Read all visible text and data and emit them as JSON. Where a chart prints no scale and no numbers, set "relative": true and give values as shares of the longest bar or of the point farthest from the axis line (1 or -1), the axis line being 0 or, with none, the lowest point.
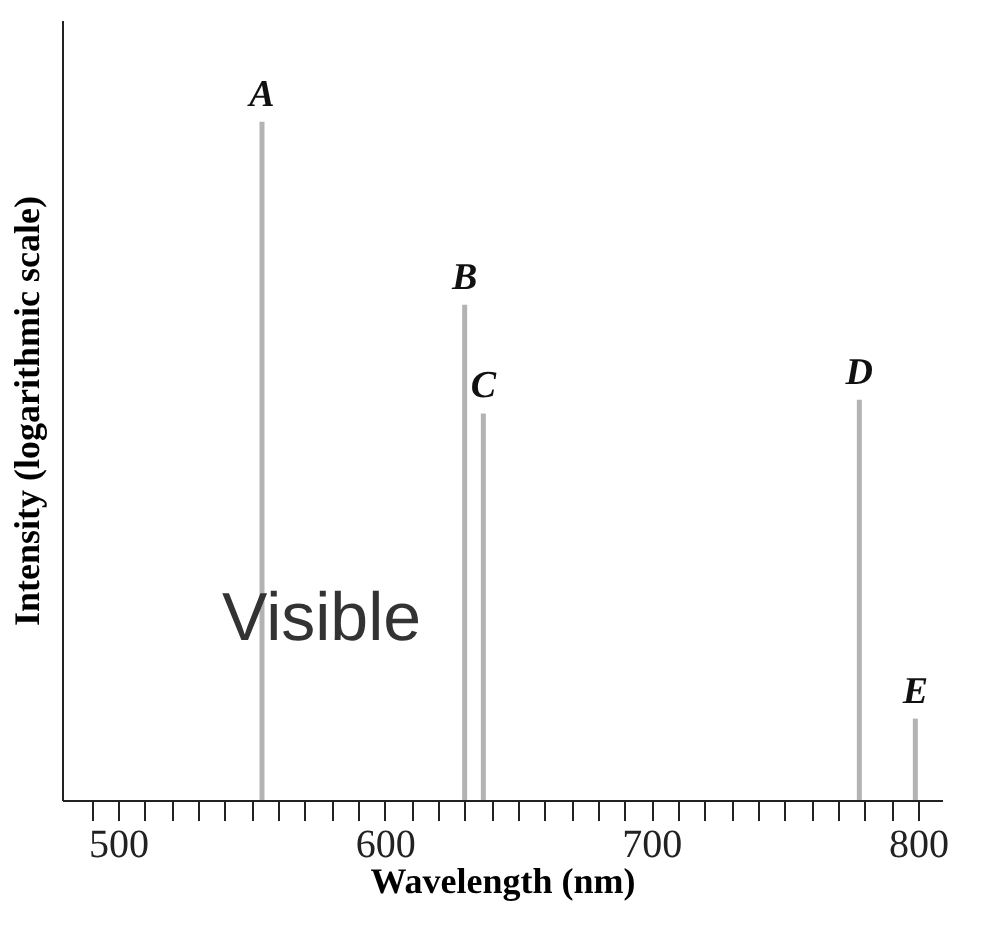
{
  "chart_data": {
    "type": "bar",
    "relative": true,
    "xlabel": "Wavelength (nm)",
    "ylabel": "Intensity (logarithmic scale)",
    "x": [
      554,
      630,
      637,
      778,
      799
    ],
    "values": [
      1,
      0.73,
      0.57,
      0.59,
      0.12
    ],
    "color": "#b3b3b3",
    "xlim": [
      479,
      809
    ],
    "xticks": [
      {
        "value": 490,
        "label": null
      },
      500,
      {
        "value": 510,
        "label": null
      },
      {
        "value": 520,
        "label": null
      },
      {
        "value": 530,
        "label": null
      },
      {
        "value": 540,
        "label": null
      },
      {
        "value": 550,
        "label": null
      },
      {
        "value": 560,
        "label": null
      },
      {
        "value": 570,
        "label": null
      },
      {
        "value": 580,
        "label": null
      },
      {
        "value": 590,
        "label": null
      },
      600,
      {
        "value": 610,
        "label": null
      },
      {
        "value": 620,
        "label": null
      },
      {
        "value": 630,
        "label": null
      },
      {
        "value": 640,
        "label": null
      },
      {
        "value": 650,
        "label": null
      },
      {
        "value": 660,
        "label": null
      },
      {
        "value": 670,
        "label": null
      },
      {
        "value": 680,
        "label": null
      },
      {
        "value": 690,
        "label": null
      },
      700,
      {
        "value": 710,
        "label": null
      },
      {
        "value": 720,
        "label": null
      },
      {
        "value": 730,
        "label": null
      },
      {
        "value": 740,
        "label": null
      },
      {
        "value": 750,
        "label": null
      },
      {
        "value": 760,
        "label": null
      },
      {
        "value": 770,
        "label": null
      },
      {
        "value": 780,
        "label": null
      },
      {
        "value": 790,
        "label": null
      },
      800
    ],
    "grid": false,
    "annotations": [
      {
        "text": "A",
        "x": 554,
        "y": 1
      },
      {
        "text": "B",
        "x": 630,
        "y": 0.73
      },
      {
        "text": "C",
        "x": 637,
        "y": 0.57
      },
      {
        "text": "D",
        "x": 778,
        "y": 0.59
      },
      {
        "text": "E",
        "x": 799,
        "y": 0.12
      },
      "Visible"
    ]
  }
}
